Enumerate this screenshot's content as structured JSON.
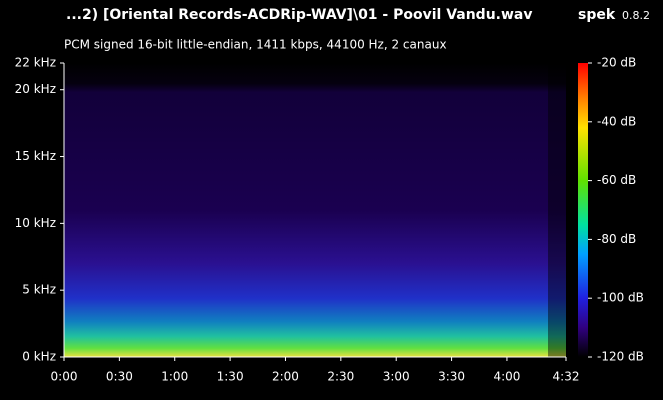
{
  "chart_data": {
    "type": "spectrogram",
    "title": "...2) [Oriental Records-ACDRip-WAV]\\01 - Poovil Vandu.wav",
    "app": "spek",
    "version": "0.8.2",
    "subtitle": "PCM signed 16-bit little-endian, 1411 kbps, 44100 Hz, 2 canaux",
    "xlim": [
      0,
      272
    ],
    "xticks": [
      {
        "value": 0,
        "label": "0:00"
      },
      {
        "value": 30,
        "label": "0:30"
      },
      {
        "value": 60,
        "label": "1:00"
      },
      {
        "value": 90,
        "label": "1:30"
      },
      {
        "value": 120,
        "label": "2:00"
      },
      {
        "value": 150,
        "label": "2:30"
      },
      {
        "value": 180,
        "label": "3:00"
      },
      {
        "value": 210,
        "label": "3:30"
      },
      {
        "value": 240,
        "label": "4:00"
      },
      {
        "value": 272,
        "label": "4:32"
      }
    ],
    "ylim": [
      0,
      22
    ],
    "yticks": [
      {
        "value": 0,
        "label": "0 kHz"
      },
      {
        "value": 5,
        "label": "5 kHz"
      },
      {
        "value": 10,
        "label": "10 kHz"
      },
      {
        "value": 15,
        "label": "15 kHz"
      },
      {
        "value": 20,
        "label": "20 kHz"
      },
      {
        "value": 22,
        "label": "22 kHz"
      }
    ],
    "clim": [
      -120,
      -20
    ],
    "cticks": [
      {
        "value": -20,
        "label": "-20 dB"
      },
      {
        "value": -40,
        "label": "-40 dB"
      },
      {
        "value": -60,
        "label": "-60 dB"
      },
      {
        "value": -80,
        "label": "-80 dB"
      },
      {
        "value": -100,
        "label": "-100 dB"
      },
      {
        "value": -120,
        "label": "-120 dB"
      }
    ]
  }
}
